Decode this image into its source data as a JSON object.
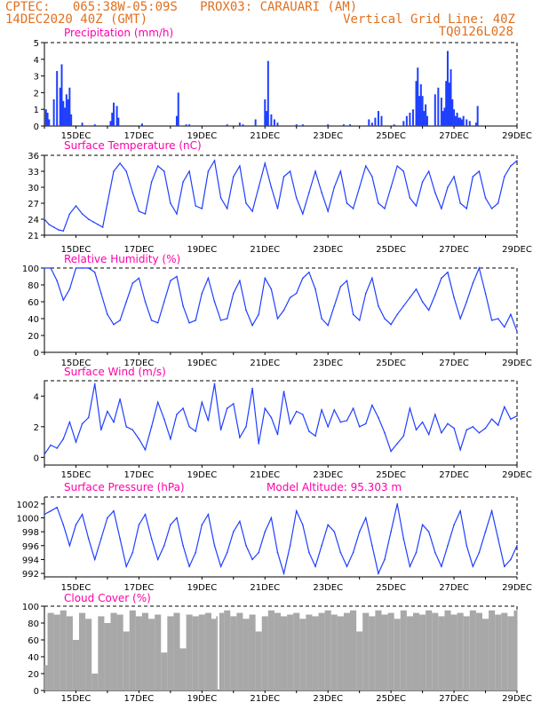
{
  "header": {
    "line1_left": "CPTEC:   065:38W-05:09S   PROX03: CARAUARI (AM)",
    "line2_left": "14DEC2020 40Z (GMT)",
    "line2_right": "Vertical Grid Line: 40Z",
    "line3_right": "TQ0126L028",
    "accent_color": "#e07020",
    "title_color": "#ff00aa",
    "series_color": "#1f3fff",
    "cloud_color": "#a8a8a8"
  },
  "x_axis": {
    "tick_labels": [
      "15DEC",
      "17DEC",
      "19DEC",
      "21DEC",
      "23DEC",
      "25DEC",
      "27DEC",
      "29DEC"
    ],
    "tick_days": [
      15,
      17,
      19,
      21,
      23,
      25,
      27,
      29
    ],
    "range_days": [
      14,
      29
    ]
  },
  "chart_data": [
    {
      "type": "bar",
      "title": "Precipitation (mm/h)",
      "ylim": [
        0,
        5
      ],
      "yticks": [
        "0",
        "1",
        "2",
        "3",
        "4",
        "5"
      ],
      "x": [
        14.05,
        14.1,
        14.15,
        14.3,
        14.4,
        14.5,
        14.55,
        14.6,
        14.65,
        14.7,
        14.75,
        14.8,
        14.85,
        15.2,
        15.6,
        16.1,
        16.15,
        16.2,
        16.3,
        16.35,
        17.1,
        18.2,
        18.25,
        18.5,
        18.6,
        19.8,
        20.2,
        20.3,
        20.7,
        21.0,
        21.05,
        21.1,
        21.2,
        21.3,
        21.4,
        22.0,
        22.2,
        23.0,
        23.5,
        23.7,
        24.3,
        24.4,
        24.5,
        24.6,
        24.7,
        25.1,
        25.4,
        25.5,
        25.6,
        25.7,
        25.8,
        25.85,
        25.9,
        25.95,
        26.0,
        26.05,
        26.1,
        26.15,
        26.4,
        26.5,
        26.6,
        26.65,
        26.7,
        26.75,
        26.8,
        26.85,
        26.9,
        26.95,
        27.0,
        27.05,
        27.1,
        27.15,
        27.2,
        27.25,
        27.3,
        27.4,
        27.5,
        27.7,
        27.75
      ],
      "values": [
        1.0,
        0.8,
        0.4,
        1.6,
        3.3,
        2.3,
        3.7,
        1.5,
        1.1,
        1.9,
        1.6,
        2.3,
        0.7,
        0.2,
        0.1,
        0.3,
        0.8,
        1.4,
        1.2,
        0.5,
        0.15,
        0.6,
        2.0,
        0.1,
        0.1,
        0.1,
        0.2,
        0.1,
        0.4,
        1.6,
        0.9,
        3.9,
        0.7,
        0.4,
        0.2,
        0.1,
        0.1,
        0.1,
        0.1,
        0.1,
        0.4,
        0.2,
        0.5,
        0.9,
        0.6,
        0.1,
        0.3,
        0.6,
        0.8,
        1.0,
        2.7,
        3.5,
        1.8,
        2.5,
        1.8,
        0.9,
        1.3,
        0.6,
        1.9,
        2.3,
        1.7,
        0.9,
        1.1,
        2.7,
        4.5,
        2.6,
        3.4,
        1.6,
        1.0,
        0.6,
        0.8,
        0.5,
        0.5,
        0.4,
        0.6,
        0.4,
        0.3,
        0.2,
        1.2
      ]
    },
    {
      "type": "line",
      "title": "Surface Temperature (nC)",
      "ylim": [
        21,
        36
      ],
      "yticks": [
        "21",
        "24",
        "27",
        "30",
        "33",
        "36"
      ],
      "x": [
        14.0,
        14.15,
        14.3,
        14.45,
        14.6,
        14.8,
        15.0,
        15.2,
        15.4,
        15.55,
        15.7,
        15.85,
        16.0,
        16.2,
        16.4,
        16.6,
        16.8,
        17.0,
        17.2,
        17.4,
        17.6,
        17.8,
        18.0,
        18.2,
        18.4,
        18.6,
        18.8,
        19.0,
        19.2,
        19.4,
        19.6,
        19.8,
        20.0,
        20.2,
        20.4,
        20.6,
        20.8,
        21.0,
        21.2,
        21.4,
        21.6,
        21.8,
        22.0,
        22.2,
        22.4,
        22.6,
        22.8,
        23.0,
        23.2,
        23.4,
        23.6,
        23.8,
        24.0,
        24.2,
        24.4,
        24.6,
        24.8,
        25.0,
        25.2,
        25.4,
        25.6,
        25.8,
        26.0,
        26.2,
        26.4,
        26.6,
        26.8,
        27.0,
        27.2,
        27.4,
        27.6,
        27.8,
        28.0,
        28.2,
        28.4,
        28.6,
        28.8,
        29.0
      ],
      "values": [
        24,
        23,
        22.5,
        22,
        21.8,
        25,
        26.5,
        25,
        24,
        23.5,
        23,
        22.5,
        27,
        33,
        34.5,
        33,
        29,
        25.5,
        25,
        31,
        34,
        33,
        27,
        25,
        31,
        33,
        26.5,
        26,
        33,
        35,
        28,
        26,
        32,
        34,
        27,
        25.5,
        30,
        34.5,
        30,
        26,
        32,
        33,
        28,
        25,
        29,
        33,
        29,
        25.5,
        30,
        33,
        27,
        26,
        30,
        34,
        32,
        27,
        26,
        30,
        34,
        33,
        28,
        26.5,
        31,
        33,
        29,
        26,
        30,
        32,
        27,
        26,
        32,
        33,
        28,
        26,
        27,
        32,
        34,
        35
      ]
    },
    {
      "type": "line",
      "title": "Relative Humidity (%)",
      "ylim": [
        0,
        100
      ],
      "yticks": [
        "0",
        "20",
        "40",
        "60",
        "80",
        "100"
      ],
      "x": [
        14.0,
        14.2,
        14.4,
        14.6,
        14.8,
        15.0,
        15.2,
        15.4,
        15.6,
        15.8,
        16.0,
        16.2,
        16.4,
        16.6,
        16.8,
        17.0,
        17.2,
        17.4,
        17.6,
        17.8,
        18.0,
        18.2,
        18.4,
        18.6,
        18.8,
        19.0,
        19.2,
        19.4,
        19.6,
        19.8,
        20.0,
        20.2,
        20.4,
        20.6,
        20.8,
        21.0,
        21.2,
        21.4,
        21.6,
        21.8,
        22.0,
        22.2,
        22.4,
        22.6,
        22.8,
        23.0,
        23.2,
        23.4,
        23.6,
        23.8,
        24.0,
        24.2,
        24.4,
        24.6,
        24.8,
        25.0,
        25.2,
        25.4,
        25.6,
        25.8,
        26.0,
        26.2,
        26.4,
        26.6,
        26.8,
        27.0,
        27.2,
        27.4,
        27.6,
        27.8,
        28.0,
        28.2,
        28.4,
        28.6,
        28.8,
        29.0
      ],
      "values": [
        100,
        100,
        85,
        62,
        75,
        100,
        100,
        100,
        95,
        70,
        45,
        33,
        38,
        60,
        82,
        88,
        60,
        38,
        35,
        60,
        85,
        90,
        55,
        35,
        38,
        70,
        88,
        60,
        38,
        40,
        70,
        85,
        50,
        32,
        45,
        88,
        75,
        40,
        50,
        65,
        70,
        88,
        95,
        75,
        40,
        32,
        55,
        78,
        85,
        45,
        38,
        70,
        88,
        55,
        40,
        33,
        45,
        55,
        65,
        75,
        60,
        50,
        68,
        88,
        95,
        65,
        40,
        60,
        82,
        100,
        70,
        38,
        40,
        30,
        45,
        25
      ]
    },
    {
      "type": "line",
      "title": "Surface Wind (m/s)",
      "ylim": [
        -0.5,
        5
      ],
      "yticks": [
        "0",
        "2",
        "4"
      ],
      "x": [
        14.0,
        14.2,
        14.4,
        14.6,
        14.8,
        15.0,
        15.2,
        15.4,
        15.6,
        15.8,
        16.0,
        16.2,
        16.4,
        16.6,
        16.8,
        17.0,
        17.2,
        17.4,
        17.6,
        17.8,
        18.0,
        18.2,
        18.4,
        18.6,
        18.8,
        19.0,
        19.2,
        19.4,
        19.6,
        19.8,
        20.0,
        20.2,
        20.4,
        20.6,
        20.8,
        21.0,
        21.2,
        21.4,
        21.6,
        21.8,
        22.0,
        22.2,
        22.4,
        22.6,
        22.8,
        23.0,
        23.2,
        23.4,
        23.6,
        23.8,
        24.0,
        24.2,
        24.4,
        24.6,
        24.8,
        25.0,
        25.2,
        25.4,
        25.6,
        25.8,
        26.0,
        26.2,
        26.4,
        26.6,
        26.8,
        27.0,
        27.2,
        27.4,
        27.6,
        27.8,
        28.0,
        28.2,
        28.4,
        28.6,
        28.8,
        29.0
      ],
      "values": [
        0.2,
        0.8,
        0.6,
        1.2,
        2.3,
        1.0,
        2.2,
        2.6,
        4.8,
        1.8,
        3.0,
        2.3,
        3.8,
        2.0,
        1.8,
        1.2,
        0.5,
        2.0,
        3.6,
        2.5,
        1.2,
        2.8,
        3.2,
        2.0,
        1.7,
        3.6,
        2.4,
        4.8,
        1.8,
        3.2,
        3.5,
        1.3,
        2.0,
        4.5,
        0.9,
        3.2,
        2.6,
        1.5,
        4.3,
        2.2,
        3.0,
        2.8,
        1.7,
        1.4,
        3.1,
        2.0,
        3.1,
        2.3,
        2.4,
        3.2,
        2.0,
        2.2,
        3.4,
        2.6,
        1.6,
        0.4,
        0.9,
        1.4,
        3.2,
        1.8,
        2.3,
        1.5,
        2.8,
        1.6,
        2.2,
        1.9,
        0.5,
        1.8,
        2.0,
        1.6,
        1.9,
        2.5,
        2.1,
        3.3,
        2.5,
        2.7
      ]
    },
    {
      "type": "line",
      "title": "Surface Pressure (hPa)",
      "subtitle": "Model Altitude: 95.303 m",
      "ylim": [
        991.5,
        1003
      ],
      "yticks": [
        "992",
        "994",
        "996",
        "998",
        "1000",
        "1002"
      ],
      "x": [
        14.0,
        14.2,
        14.4,
        14.6,
        14.8,
        15.0,
        15.2,
        15.4,
        15.6,
        15.8,
        16.0,
        16.2,
        16.4,
        16.6,
        16.8,
        17.0,
        17.2,
        17.4,
        17.6,
        17.8,
        18.0,
        18.2,
        18.4,
        18.6,
        18.8,
        19.0,
        19.2,
        19.4,
        19.6,
        19.8,
        20.0,
        20.2,
        20.4,
        20.6,
        20.8,
        21.0,
        21.2,
        21.4,
        21.6,
        21.8,
        22.0,
        22.2,
        22.4,
        22.6,
        22.8,
        23.0,
        23.2,
        23.4,
        23.6,
        23.8,
        24.0,
        24.2,
        24.4,
        24.6,
        24.8,
        25.0,
        25.2,
        25.4,
        25.6,
        25.8,
        26.0,
        26.2,
        26.4,
        26.6,
        26.8,
        27.0,
        27.2,
        27.4,
        27.6,
        27.8,
        28.0,
        28.2,
        28.4,
        28.6,
        28.8,
        29.0
      ],
      "values": [
        1000.5,
        1001.0,
        1001.5,
        999,
        996,
        999,
        1000.5,
        997,
        994,
        997,
        1000,
        1001,
        997,
        993,
        995,
        999,
        1000.5,
        997,
        994,
        996,
        999,
        1000,
        996,
        993,
        995,
        999,
        1000.5,
        996,
        993,
        995,
        998,
        999.5,
        996,
        994,
        995,
        998,
        1000,
        995,
        992,
        996,
        1001,
        999,
        995,
        993,
        996,
        999,
        998,
        995,
        993,
        995,
        998,
        1000,
        996,
        992,
        994,
        998,
        1002,
        997,
        993,
        995,
        999,
        998,
        995,
        993,
        996,
        999,
        1001,
        996,
        993,
        995,
        998,
        1001,
        997,
        993,
        994,
        996
      ]
    },
    {
      "type": "area",
      "title": "Cloud Cover (%)",
      "ylim": [
        0,
        100
      ],
      "yticks": [
        "0",
        "20",
        "40",
        "60",
        "80",
        "100"
      ],
      "x": [
        14.0,
        14.1,
        14.3,
        14.5,
        14.7,
        14.9,
        15.1,
        15.3,
        15.5,
        15.7,
        15.9,
        16.1,
        16.3,
        16.5,
        16.7,
        16.9,
        17.1,
        17.3,
        17.5,
        17.7,
        17.9,
        18.1,
        18.3,
        18.5,
        18.7,
        18.9,
        19.1,
        19.3,
        19.45,
        19.5,
        19.55,
        19.7,
        19.9,
        20.1,
        20.3,
        20.5,
        20.7,
        20.9,
        21.1,
        21.3,
        21.5,
        21.7,
        21.9,
        22.1,
        22.3,
        22.5,
        22.7,
        22.9,
        23.1,
        23.3,
        23.5,
        23.7,
        23.9,
        24.1,
        24.3,
        24.5,
        24.7,
        24.9,
        25.1,
        25.3,
        25.5,
        25.7,
        25.9,
        26.1,
        26.3,
        26.5,
        26.7,
        26.9,
        27.1,
        27.3,
        27.5,
        27.7,
        27.9,
        28.1,
        28.3,
        28.5,
        28.7,
        28.9,
        29.0
      ],
      "values": [
        30,
        92,
        90,
        95,
        88,
        60,
        92,
        85,
        20,
        88,
        80,
        92,
        90,
        70,
        95,
        88,
        92,
        85,
        90,
        45,
        88,
        92,
        50,
        90,
        88,
        90,
        92,
        85,
        88,
        0,
        92,
        95,
        88,
        92,
        85,
        90,
        70,
        88,
        95,
        92,
        88,
        90,
        92,
        85,
        90,
        88,
        92,
        95,
        90,
        88,
        92,
        95,
        70,
        92,
        88,
        95,
        90,
        92,
        85,
        95,
        88,
        92,
        90,
        95,
        92,
        88,
        95,
        90,
        92,
        88,
        95,
        92,
        85,
        95,
        90,
        92,
        88,
        95,
        96
      ]
    }
  ]
}
